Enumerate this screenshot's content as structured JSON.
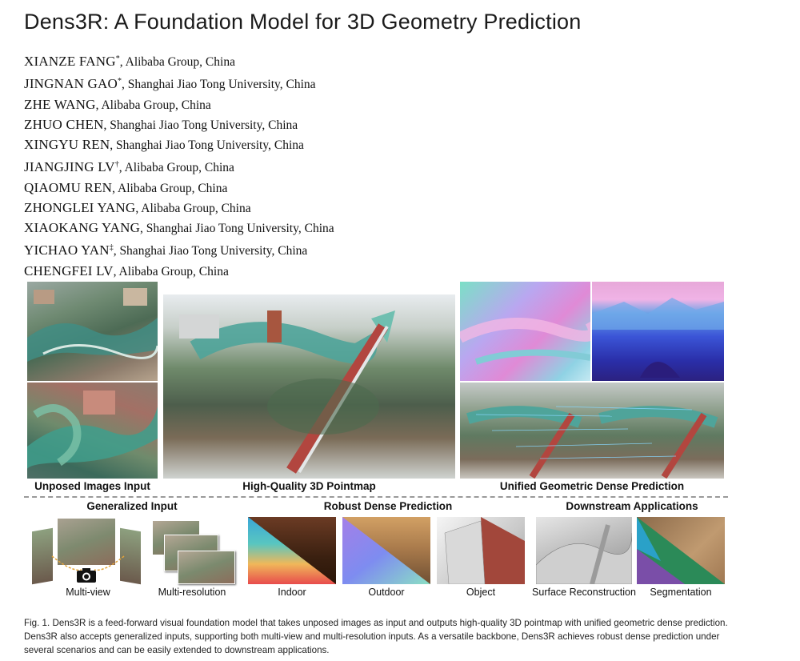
{
  "paper": {
    "title": "Dens3R: A Foundation Model for 3D Geometry Prediction",
    "authors": [
      {
        "name": "XIANZE FANG",
        "mark": "*",
        "affiliation": ", Alibaba Group, China"
      },
      {
        "name": "JINGNAN GAO",
        "mark": "*",
        "affiliation": ", Shanghai Jiao Tong University, China"
      },
      {
        "name": "ZHE WANG",
        "mark": "",
        "affiliation": ", Alibaba Group, China"
      },
      {
        "name": "ZHUO CHEN",
        "mark": "",
        "affiliation": ", Shanghai Jiao Tong University, China"
      },
      {
        "name": "XINGYU REN",
        "mark": "",
        "affiliation": ", Shanghai Jiao Tong University, China"
      },
      {
        "name": "JIANGJING LV",
        "mark": "†",
        "affiliation": ", Alibaba Group, China"
      },
      {
        "name": "QIAOMU REN",
        "mark": "",
        "affiliation": ", Alibaba Group, China"
      },
      {
        "name": "ZHONGLEI YANG",
        "mark": "",
        "affiliation": ", Alibaba Group, China"
      },
      {
        "name": "XIAOKANG YANG",
        "mark": "",
        "affiliation": ", Shanghai Jiao Tong University, China"
      },
      {
        "name": "YICHAO YAN",
        "mark": "‡",
        "affiliation": ", Shanghai Jiao Tong University, China"
      },
      {
        "name": "CHENGFEI LV",
        "mark": "",
        "affiliation": ", Alibaba Group, China"
      }
    ]
  },
  "figure": {
    "top_labels": {
      "unposed": "Unposed Images Input",
      "pointmap": "High-Quality 3D Pointmap",
      "unified": "Unified Geometric Dense Prediction"
    },
    "sections": {
      "generalized": "Generalized Input",
      "robust": "Robust Dense Prediction",
      "downstream": "Downstream Applications"
    },
    "bottom_labels": {
      "multiview": "Multi-view",
      "multires": "Multi-resolution",
      "indoor": "Indoor",
      "outdoor": "Outdoor",
      "object": "Object",
      "surface": "Surface Reconstruction",
      "segmentation": "Segmentation"
    }
  },
  "caption": {
    "label": "Fig. 1.",
    "text": " Dens3R is a feed-forward visual foundation model that takes unposed images as input and outputs high-quality 3D pointmap with unified geometric dense prediction. Dens3R also accepts generalized inputs, supporting both multi-view and multi-resolution inputs. As a versatile backbone, Dens3R achieves robust dense prediction under several scenarios and can be easily extended to downstream applications."
  }
}
